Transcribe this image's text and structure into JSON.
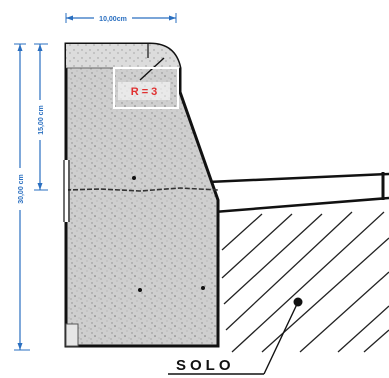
{
  "dimensions": {
    "top_width": "10,00cm",
    "upper_height": "15,00 cm",
    "total_height": "30,00 cm"
  },
  "radius_label": "R = 3",
  "ground_label": "SOLO",
  "colors": {
    "dimension": "#2a6fc0",
    "radius_label": "#e03030",
    "concrete_fill": "#cfcfcf",
    "outline": "#111111"
  }
}
